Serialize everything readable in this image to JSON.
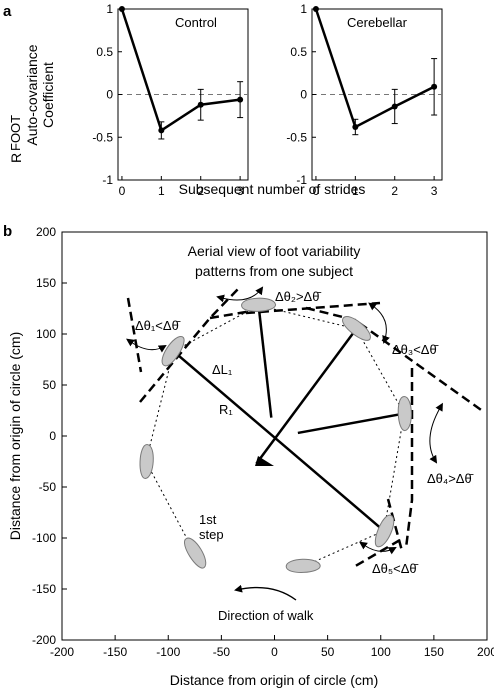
{
  "panel_a": {
    "letter": "a",
    "ylabel_lines": [
      "R",
      "FOOT",
      "Auto-covariance",
      "Coefficient"
    ],
    "xlabel": "Subsequent number of strides",
    "xticks": [
      "0",
      "1",
      "2",
      "3"
    ],
    "yticks": [
      "1",
      "0.5",
      "0",
      "-0.5",
      "-1"
    ]
  },
  "panel_b": {
    "letter": "b",
    "xlabel": "Distance from origin of circle (cm)",
    "ylabel": "Distance from origin of circle (cm)",
    "xticks": [
      "-200",
      "-150",
      "-100",
      "-50",
      "0",
      "50",
      "100",
      "150",
      "200"
    ],
    "yticks": [
      "200",
      "150",
      "100",
      "50",
      "0",
      "-50",
      "-100",
      "-150",
      "-200"
    ],
    "title_lines": [
      "Aerial view of foot variability",
      "patterns from one subject"
    ],
    "annotations": {
      "theta1": "Δθ₁<Δθ̄",
      "theta2": "Δθ₂>Δθ̄",
      "theta3": "Δθ₃<Δθ̄",
      "theta4": "Δθ₄>Δθ̄",
      "theta5": "Δθ₅<Δθ̄",
      "dl": "ΔL₁",
      "r1": "R₁",
      "first_step": [
        "1st",
        "step"
      ],
      "direction": "Direction of walk"
    }
  },
  "chart_data": [
    {
      "type": "line",
      "title": "Control",
      "xlabel": "Subsequent number of strides",
      "ylabel": "RFOOT Auto-covariance Coefficient",
      "x": [
        0,
        1,
        2,
        3
      ],
      "y": [
        1.0,
        -0.42,
        -0.12,
        -0.06
      ],
      "error": [
        0,
        0.1,
        0.18,
        0.21
      ],
      "xlim": [
        -0.1,
        3.2
      ],
      "ylim": [
        -1,
        1
      ],
      "reference_line": 0
    },
    {
      "type": "line",
      "title": "Cerebellar",
      "xlabel": "Subsequent number of strides",
      "ylabel": "",
      "x": [
        0,
        1,
        2,
        3
      ],
      "y": [
        1.0,
        -0.38,
        -0.14,
        0.09
      ],
      "error": [
        0,
        0.09,
        0.2,
        0.33
      ],
      "xlim": [
        -0.1,
        3.2
      ],
      "ylim": [
        -1,
        1
      ],
      "reference_line": 0
    },
    {
      "type": "scatter",
      "title": "Aerial view of foot variability patterns from one subject",
      "xlabel": "Distance from origin of circle (cm)",
      "ylabel": "Distance from origin of circle (cm)",
      "xlim": [
        -200,
        200
      ],
      "ylim": [
        -200,
        200
      ],
      "footprints": [
        {
          "x": -75,
          "y": -115,
          "angle": 60
        },
        {
          "x": -121,
          "y": -25,
          "angle": 95
        },
        {
          "x": -95,
          "y": 83,
          "angle": -55
        },
        {
          "x": -15,
          "y": 128,
          "angle": 0
        },
        {
          "x": 77,
          "y": 105,
          "angle": 40
        },
        {
          "x": 122,
          "y": 22,
          "angle": 90
        },
        {
          "x": 103,
          "y": -93,
          "angle": 115
        },
        {
          "x": 27,
          "y": -128,
          "angle": 0
        }
      ],
      "radial_lines_to": [
        {
          "x": -95,
          "y": 83
        },
        {
          "x": -15,
          "y": 128
        },
        {
          "x": 77,
          "y": 105
        },
        {
          "x": 122,
          "y": 22
        },
        {
          "x": 103,
          "y": -93
        }
      ],
      "origin": {
        "x": 0,
        "y": 0
      }
    }
  ]
}
